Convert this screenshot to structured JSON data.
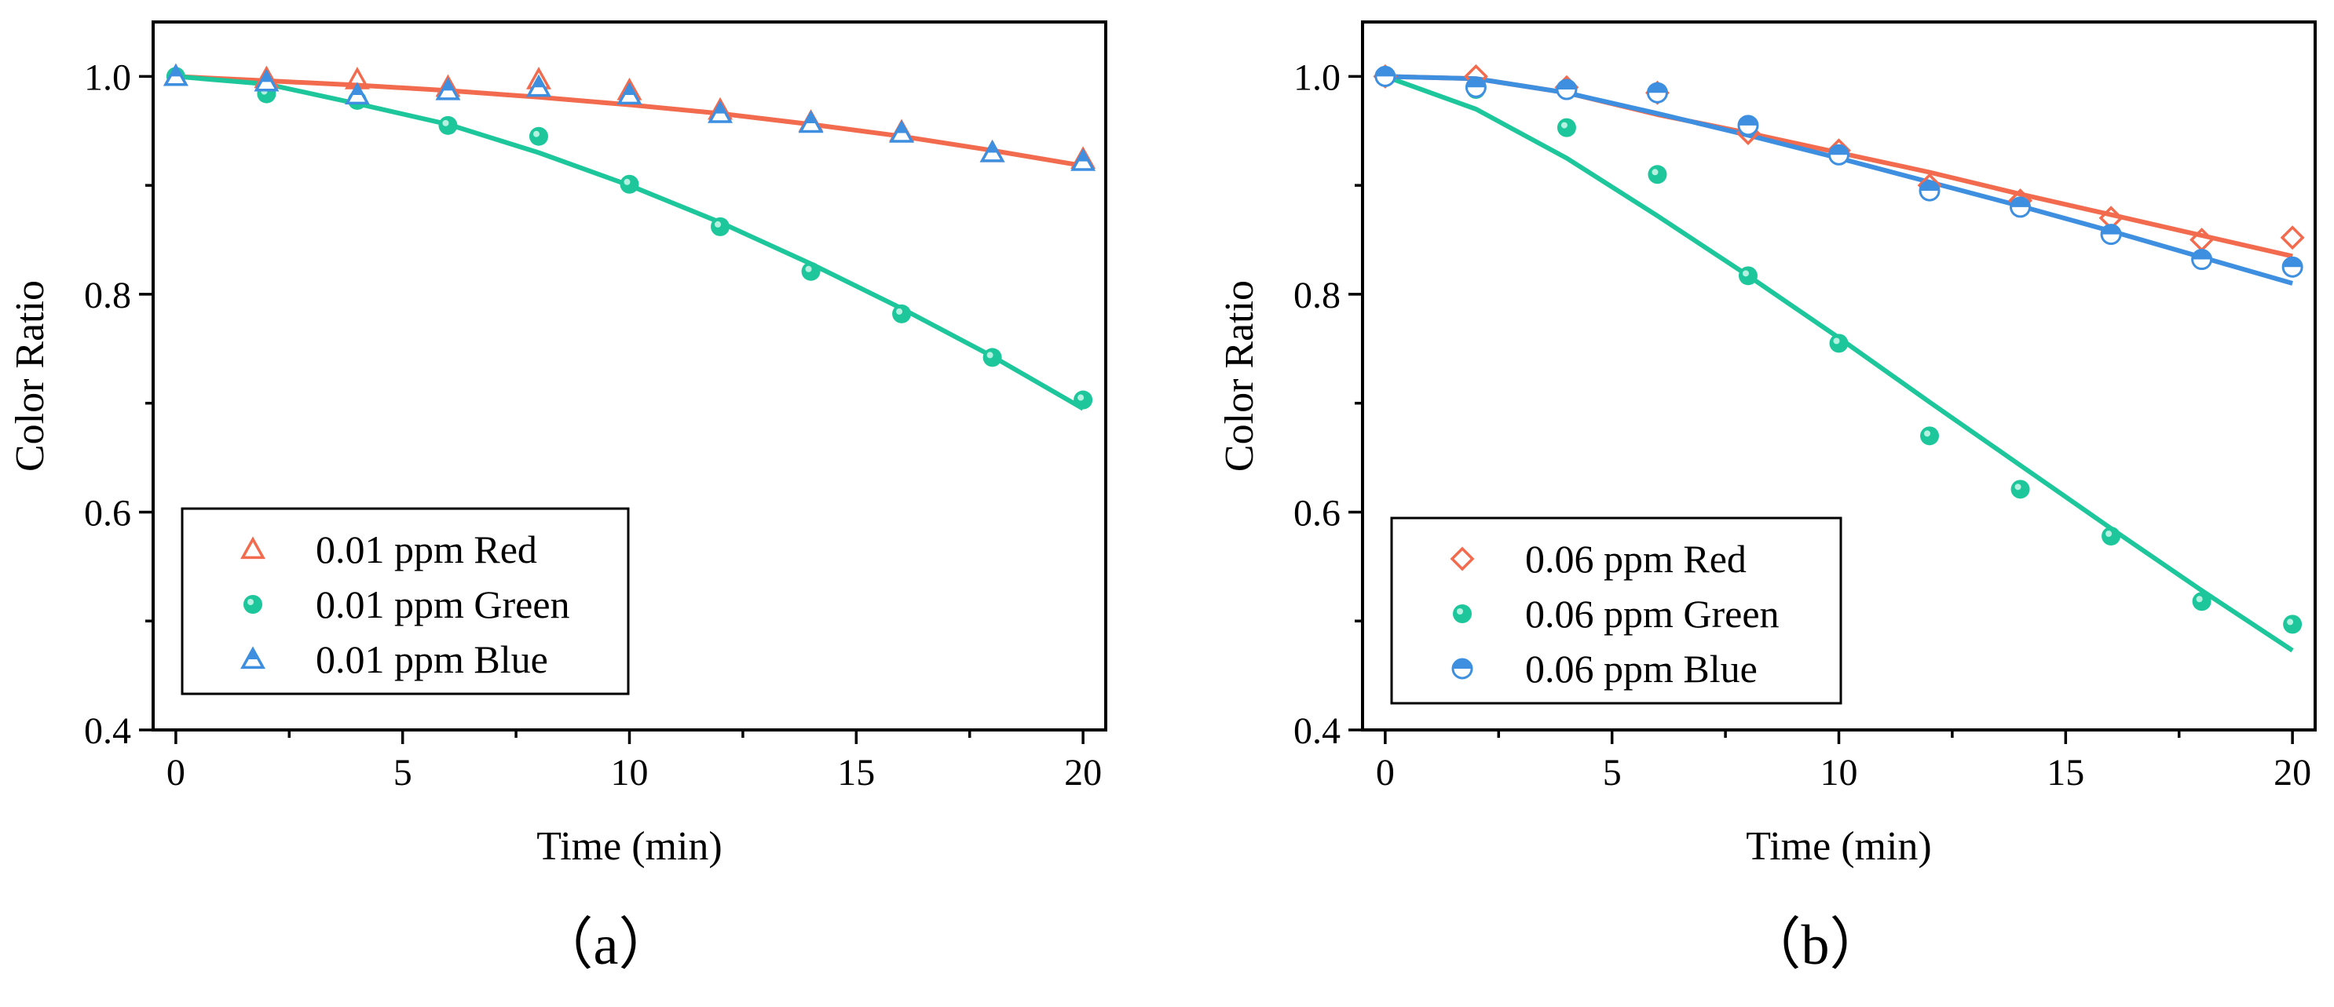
{
  "chart_data": [
    {
      "type": "scatter",
      "panel_label": "（a）",
      "xlabel": "Time (min)",
      "ylabel": "Color Ratio",
      "xlim": [
        -0.5,
        20.5
      ],
      "ylim": [
        0.4,
        1.05
      ],
      "xticks": [
        0,
        5,
        10,
        15,
        20
      ],
      "yticks": [
        0.4,
        0.6,
        0.8,
        1.0
      ],
      "ytick_labels": [
        "0.4",
        "0.6",
        "0.8",
        "1.0"
      ],
      "legend_position": "bottom-left",
      "series": [
        {
          "name": "0.01 ppm Red",
          "color": "#f26b4e",
          "marker": "triangle-open",
          "x": [
            0,
            2,
            4,
            6,
            8,
            10,
            12,
            14,
            16,
            18,
            20
          ],
          "y": [
            1.0,
            0.998,
            0.997,
            0.99,
            0.997,
            0.987,
            0.969,
            0.958,
            0.949,
            0.93,
            0.924
          ],
          "fit_y": [
            1.0,
            0.996,
            0.992,
            0.987,
            0.981,
            0.974,
            0.966,
            0.956,
            0.945,
            0.932,
            0.918
          ]
        },
        {
          "name": "0.01 ppm Green",
          "color": "#1dc79b",
          "marker": "circle-filled",
          "x": [
            0,
            2,
            4,
            6,
            8,
            10,
            12,
            14,
            16,
            18,
            20
          ],
          "y": [
            1.0,
            0.984,
            0.978,
            0.955,
            0.945,
            0.901,
            0.862,
            0.821,
            0.782,
            0.742,
            0.703
          ],
          "fit_y": [
            1.0,
            0.993,
            0.975,
            0.956,
            0.93,
            0.9,
            0.866,
            0.828,
            0.787,
            0.743,
            0.695
          ]
        },
        {
          "name": "0.01 ppm Blue",
          "color": "#3e8fe0",
          "marker": "triangle-half",
          "x": [
            0,
            2,
            4,
            6,
            8,
            10,
            12,
            14,
            16,
            18,
            20
          ],
          "y": [
            1.0,
            0.995,
            0.983,
            0.987,
            0.99,
            0.983,
            0.966,
            0.957,
            0.948,
            0.93,
            0.922
          ]
        }
      ]
    },
    {
      "type": "scatter",
      "panel_label": "（b）",
      "xlabel": "Time (min)",
      "ylabel": "Color Ratio",
      "xlim": [
        -0.5,
        20.5
      ],
      "ylim": [
        0.4,
        1.05
      ],
      "xticks": [
        0,
        5,
        10,
        15,
        20
      ],
      "yticks": [
        0.4,
        0.6,
        0.8,
        1.0
      ],
      "ytick_labels": [
        "0.4",
        "0.6",
        "0.8",
        "1.0"
      ],
      "legend_position": "bottom-left",
      "series": [
        {
          "name": "0.06 ppm Red",
          "color": "#f26b4e",
          "marker": "diamond-open",
          "x": [
            0,
            2,
            4,
            6,
            8,
            10,
            12,
            14,
            16,
            18,
            20
          ],
          "y": [
            1.0,
            1.0,
            0.99,
            0.985,
            0.948,
            0.932,
            0.9,
            0.886,
            0.87,
            0.85,
            0.852
          ],
          "fit_y": [
            1.0,
            0.998,
            0.985,
            0.965,
            0.948,
            0.93,
            0.912,
            0.892,
            0.873,
            0.854,
            0.835
          ]
        },
        {
          "name": "0.06 ppm Green",
          "color": "#1dc79b",
          "marker": "circle-filled",
          "x": [
            0,
            2,
            4,
            6,
            8,
            10,
            12,
            14,
            16,
            18,
            20
          ],
          "y": [
            1.0,
            0.988,
            0.953,
            0.91,
            0.817,
            0.755,
            0.67,
            0.621,
            0.578,
            0.518,
            0.497
          ],
          "fit_y": [
            1.0,
            0.97,
            0.925,
            0.872,
            0.817,
            0.76,
            0.701,
            0.643,
            0.585,
            0.528,
            0.473
          ]
        },
        {
          "name": "0.06 ppm Blue",
          "color": "#3e8fe0",
          "marker": "circle-half",
          "x": [
            0,
            2,
            4,
            6,
            8,
            10,
            12,
            14,
            16,
            18,
            20
          ],
          "y": [
            1.0,
            0.99,
            0.988,
            0.985,
            0.955,
            0.928,
            0.895,
            0.88,
            0.855,
            0.832,
            0.825
          ],
          "fit_y": [
            1.0,
            0.998,
            0.985,
            0.966,
            0.946,
            0.925,
            0.903,
            0.881,
            0.858,
            0.834,
            0.81
          ]
        }
      ]
    }
  ]
}
